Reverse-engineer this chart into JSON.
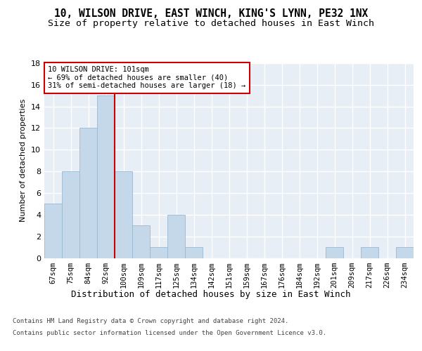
{
  "title": "10, WILSON DRIVE, EAST WINCH, KING'S LYNN, PE32 1NX",
  "subtitle": "Size of property relative to detached houses in East Winch",
  "xlabel": "Distribution of detached houses by size in East Winch",
  "ylabel": "Number of detached properties",
  "bin_labels": [
    "67sqm",
    "75sqm",
    "84sqm",
    "92sqm",
    "100sqm",
    "109sqm",
    "117sqm",
    "125sqm",
    "134sqm",
    "142sqm",
    "151sqm",
    "159sqm",
    "167sqm",
    "176sqm",
    "184sqm",
    "192sqm",
    "201sqm",
    "209sqm",
    "217sqm",
    "226sqm",
    "234sqm"
  ],
  "bar_values": [
    5,
    8,
    12,
    15,
    8,
    3,
    1,
    4,
    1,
    0,
    0,
    0,
    0,
    0,
    0,
    0,
    1,
    0,
    1,
    0,
    1
  ],
  "bar_color": "#c5d8ea",
  "bar_edge_color": "#9ab8d0",
  "vline_color": "#cc0000",
  "annotation_text": "10 WILSON DRIVE: 101sqm\n← 69% of detached houses are smaller (40)\n31% of semi-detached houses are larger (18) →",
  "annotation_box_color": "#cc0000",
  "ylim": [
    0,
    18
  ],
  "yticks": [
    0,
    2,
    4,
    6,
    8,
    10,
    12,
    14,
    16,
    18
  ],
  "background_color": "#e8eef5",
  "grid_color": "#ffffff",
  "title_fontsize": 10.5,
  "subtitle_fontsize": 9.5,
  "xlabel_fontsize": 9,
  "ylabel_fontsize": 8,
  "tick_fontsize": 7.5,
  "ann_fontsize": 7.5,
  "footer_line1": "Contains HM Land Registry data © Crown copyright and database right 2024.",
  "footer_line2": "Contains public sector information licensed under the Open Government Licence v3.0."
}
